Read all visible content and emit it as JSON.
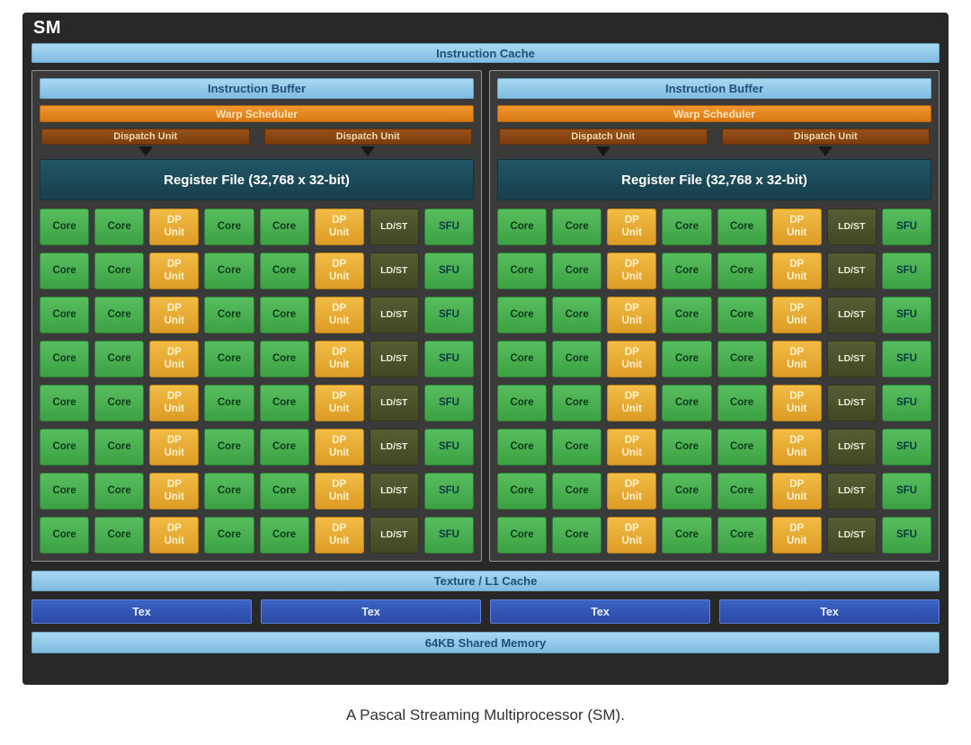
{
  "title": "SM",
  "caption": "A Pascal Streaming Multiprocessor (SM).",
  "instruction_cache": "Instruction Cache",
  "partition": {
    "instruction_buffer": "Instruction Buffer",
    "warp_scheduler": "Warp Scheduler",
    "dispatch_units": [
      "Dispatch Unit",
      "Dispatch Unit"
    ],
    "register_file": "Register File (32,768 x 32-bit)",
    "grid": {
      "rows": 8,
      "columns": 8,
      "row_pattern": [
        {
          "label": "Core",
          "type": "core"
        },
        {
          "label": "Core",
          "type": "core"
        },
        {
          "label": "DP Unit",
          "type": "dp"
        },
        {
          "label": "Core",
          "type": "core"
        },
        {
          "label": "Core",
          "type": "core"
        },
        {
          "label": "DP Unit",
          "type": "dp"
        },
        {
          "label": "LD/ST",
          "type": "ldst"
        },
        {
          "label": "SFU",
          "type": "sfu"
        }
      ]
    }
  },
  "bottom": {
    "texture_l1_cache": "Texture / L1 Cache",
    "tex_units": [
      "Tex",
      "Tex",
      "Tex",
      "Tex"
    ],
    "shared_memory": "64KB Shared Memory"
  },
  "colors": {
    "background_dark": "#282828",
    "light_blue": "#8ec9ec",
    "warp_orange": "#e8871f",
    "dispatch_brown": "#8a4410",
    "register_teal": "#1d4d5e",
    "core_green": "#45ab4c",
    "dp_gold": "#e8ab34",
    "ldst_olive": "#4b522b",
    "sfu_green": "#45ab4c",
    "tex_blue": "#3156b5"
  }
}
